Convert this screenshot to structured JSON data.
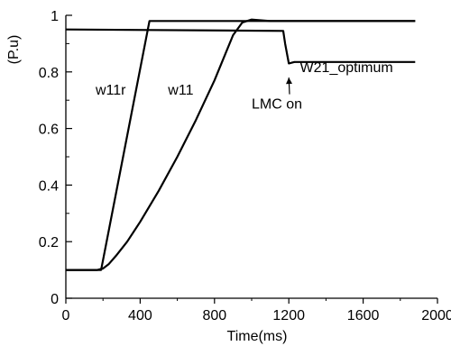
{
  "chart_data": {
    "type": "line",
    "title": "",
    "xlabel": "Time(ms)",
    "ylabel": "(P.u)",
    "xlim": [
      0,
      2000
    ],
    "ylim": [
      0,
      1
    ],
    "grid": false,
    "x_ticks": [
      {
        "value": 0,
        "label": "0"
      },
      {
        "value": 400,
        "label": "400"
      },
      {
        "value": 800,
        "label": "800"
      },
      {
        "value": 1200,
        "label": "1200"
      },
      {
        "value": 1600,
        "label": "1600"
      },
      {
        "value": 2000,
        "label": "2000"
      }
    ],
    "y_ticks": [
      {
        "value": 0,
        "label": "0"
      },
      {
        "value": 0.2,
        "label": "0.2"
      },
      {
        "value": 0.4,
        "label": "0.4"
      },
      {
        "value": 0.6,
        "label": "0.6"
      },
      {
        "value": 0.8,
        "label": "0.8"
      },
      {
        "value": 1,
        "label": "1"
      }
    ],
    "series": [
      {
        "name": "w11r",
        "x": [
          0,
          190,
          450,
          1880
        ],
        "y": [
          0.1,
          0.1,
          0.98,
          0.98
        ]
      },
      {
        "name": "w11",
        "x": [
          0,
          170,
          200,
          230,
          270,
          330,
          400,
          500,
          600,
          700,
          800,
          850,
          900,
          950,
          1000,
          1100,
          1200,
          1400,
          1600,
          1880
        ],
        "y": [
          0.1,
          0.1,
          0.105,
          0.12,
          0.15,
          0.2,
          0.27,
          0.38,
          0.5,
          0.63,
          0.77,
          0.85,
          0.93,
          0.975,
          0.985,
          0.98,
          0.98,
          0.98,
          0.98,
          0.98
        ]
      },
      {
        "name": "W21_optimum",
        "x": [
          0,
          1170,
          1180,
          1200,
          1230,
          1880
        ],
        "y": [
          0.95,
          0.945,
          0.9,
          0.83,
          0.835,
          0.835
        ]
      }
    ],
    "annotations": [
      {
        "text": "w11r",
        "x": 160,
        "y": 0.72
      },
      {
        "text": "w11",
        "x": 550,
        "y": 0.72
      },
      {
        "text": "W21_optimum",
        "x": 1260,
        "y": 0.8
      },
      {
        "text": "LMC on",
        "x": 1000,
        "y": 0.67,
        "arrow_to": {
          "x": 1200,
          "y": 0.78
        }
      }
    ]
  }
}
